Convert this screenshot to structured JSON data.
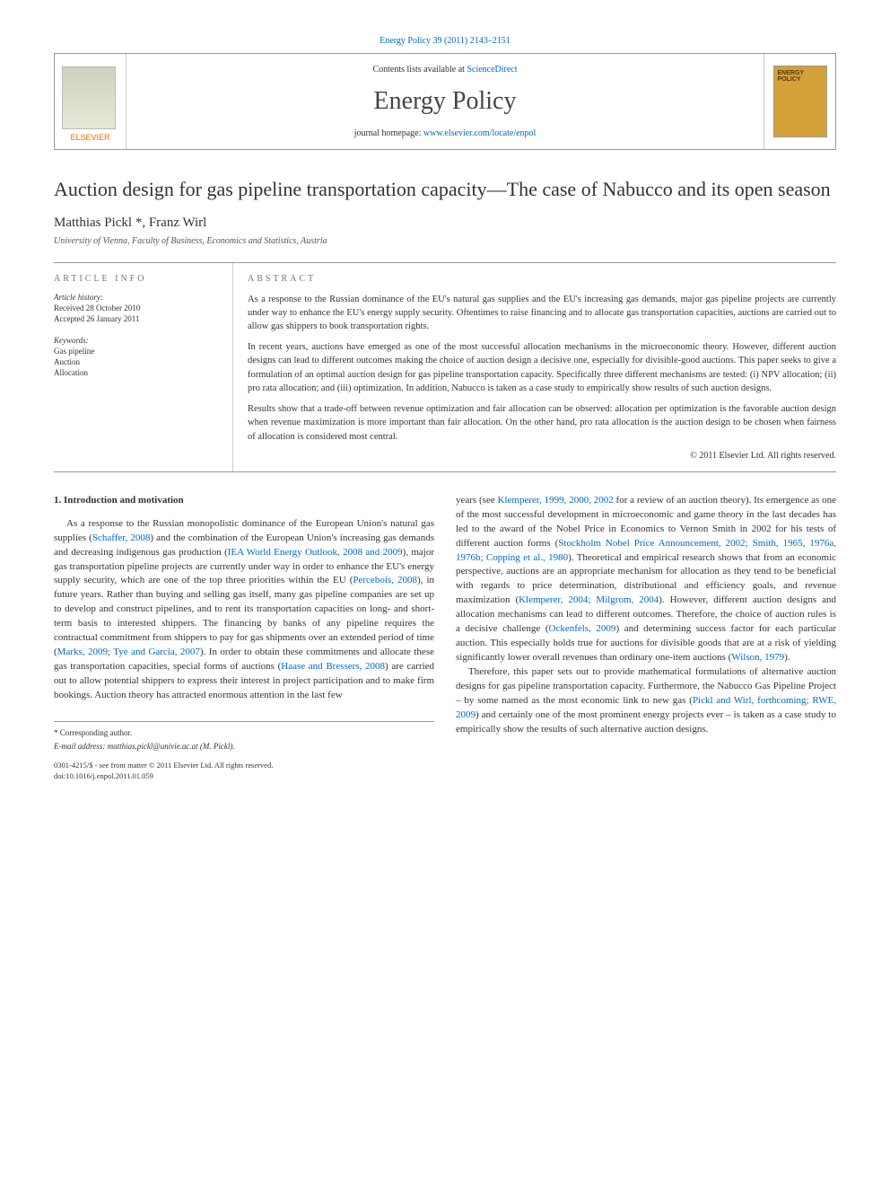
{
  "header": {
    "journal_ref": "Energy Policy 39 (2011) 2143–2151",
    "contents_prefix": "Contents lists available at ",
    "contents_link": "ScienceDirect",
    "journal_name": "Energy Policy",
    "homepage_prefix": "journal homepage: ",
    "homepage_url": "www.elsevier.com/locate/enpol",
    "publisher_logo_text": "ELSEVIER",
    "cover_text": "ENERGY POLICY"
  },
  "article": {
    "title": "Auction design for gas pipeline transportation capacity—The case of Nabucco and its open season",
    "authors": "Matthias Pickl *, Franz Wirl",
    "affiliation": "University of Vienna, Faculty of Business, Economics and Statistics, Austria"
  },
  "article_info": {
    "heading": "ARTICLE INFO",
    "history_label": "Article history:",
    "received": "Received 28 October 2010",
    "accepted": "Accepted 26 January 2011",
    "keywords_label": "Keywords:",
    "kw1": "Gas pipeline",
    "kw2": "Auction",
    "kw3": "Allocation"
  },
  "abstract": {
    "heading": "ABSTRACT",
    "p1": "As a response to the Russian dominance of the EU's natural gas supplies and the EU's increasing gas demands, major gas pipeline projects are currently under way to enhance the EU's energy supply security. Oftentimes to raise financing and to allocate gas transportation capacities, auctions are carried out to allow gas shippers to book transportation rights.",
    "p2": "In recent years, auctions have emerged as one of the most successful allocation mechanisms in the microeconomic theory. However, different auction designs can lead to different outcomes making the choice of auction design a decisive one, especially for divisible-good auctions. This paper seeks to give a formulation of an optimal auction design for gas pipeline transportation capacity. Specifically three different mechanisms are tested: (i) NPV allocation; (ii) pro rata allocation; and (iii) optimization. In addition, Nabucco is taken as a case study to empirically show results of such auction designs.",
    "p3": "Results show that a trade-off between revenue optimization and fair allocation can be observed: allocation per optimization is the favorable auction design when revenue maximization is more important than fair allocation. On the other hand, pro rata allocation is the auction design to be chosen when fairness of allocation is considered most central.",
    "copyright": "© 2011 Elsevier Ltd. All rights reserved."
  },
  "body": {
    "section1_heading": "1. Introduction and motivation",
    "col1_p1_a": "As a response to the Russian monopolistic dominance of the European Union's natural gas supplies (",
    "col1_ref1": "Schaffer, 2008",
    "col1_p1_b": ") and the combination of the European Union's increasing gas demands and decreasing indigenous gas production (",
    "col1_ref2": "IEA World Energy Outlook, 2008 and 2009",
    "col1_p1_c": "), major gas transportation pipeline projects are currently under way in order to enhance the EU's energy supply security, which are one of the top three priorities within the EU (",
    "col1_ref3": "Percebois, 2008",
    "col1_p1_d": "), in future years. Rather than buying and selling gas itself, many gas pipeline companies are set up to develop and construct pipelines, and to rent its transportation capacities on long- and short-term basis to interested shippers. The financing by banks of any pipeline requires the contractual commitment from shippers to pay for gas shipments over an extended period of time (",
    "col1_ref4": "Marks, 2009; Tye and Garcia, 2007",
    "col1_p1_e": "). In order to obtain these commitments and allocate these gas transportation capacities, special forms of auctions (",
    "col1_ref5": "Haase and Bressers, 2008",
    "col1_p1_f": ") are carried out to allow potential shippers to express their interest in project participation and to make firm bookings. Auction theory has attracted enormous attention in the last few",
    "col2_p1_a": "years (see ",
    "col2_ref1": "Klemperer, 1999, 2000, 2002",
    "col2_p1_b": " for a review of an auction theory). Its emergence as one of the most successful development in microeconomic and game theory in the last decades has led to the award of the Nobel Price in Economics to Vernon Smith in 2002 for his tests of different auction forms (",
    "col2_ref2": "Stockholm Nobel Price Announcement, 2002; Smith, 1965, 1976a, 1976b; Copping et al., 1980",
    "col2_p1_c": "). Theoretical and empirical research shows that from an economic perspective, auctions are an appropriate mechanism for allocation as they tend to be beneficial with regards to price determination, distributional and efficiency goals, and revenue maximization (",
    "col2_ref3": "Klemperer, 2004; Milgrom, 2004",
    "col2_p1_d": "). However, different auction designs and allocation mechanisms can lead to different outcomes. Therefore, the choice of auction rules is a decisive challenge (",
    "col2_ref4": "Ockenfels, 2009",
    "col2_p1_e": ") and determining success factor for each particular auction. This especially holds true for auctions for divisible goods that are at a risk of yielding significantly lower overall revenues than ordinary one-item auctions (",
    "col2_ref5": "Wilson, 1979",
    "col2_p1_f": ").",
    "col2_p2_a": "Therefore, this paper sets out to provide mathematical formulations of alternative auction designs for gas pipeline transportation capacity. Furthermore, the Nabucco Gas Pipeline Project – by some named as the most economic link to new gas (",
    "col2_ref6": "Pickl and Wirl, forthcoming; RWE, 2009",
    "col2_p2_b": ") and certainly one of the most prominent energy projects ever – is taken as a case study to empirically show the results of such alternative auction designs."
  },
  "footer": {
    "corresponding": "* Corresponding author.",
    "email_label": "E-mail address: ",
    "email": "matthias.pickl@univie.ac.at (M. Pickl).",
    "issn": "0301-4215/$ - see front matter © 2011 Elsevier Ltd. All rights reserved.",
    "doi": "doi:10.1016/j.enpol.2011.01.059"
  },
  "colors": {
    "link": "#0066cc",
    "elsevier_orange": "#ff6600",
    "cover_bg": "#d4a039",
    "text": "#333333",
    "rule": "#999999"
  }
}
